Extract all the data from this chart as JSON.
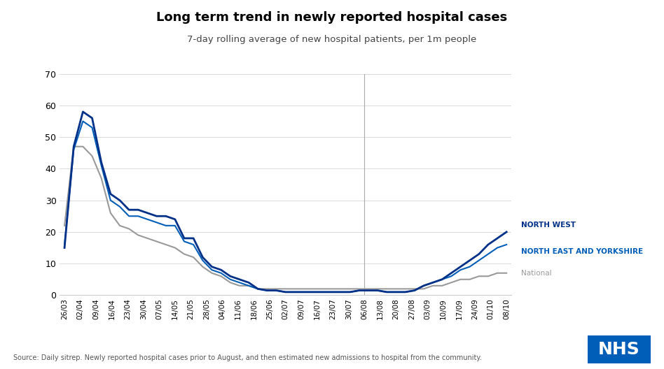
{
  "title": "Long term trend in newly reported hospital cases",
  "subtitle": "7-day rolling average of new hospital patients, per 1m people",
  "source_text": "Source: Daily sitrep. Newly reported hospital cases prior to August, and then estimated new admissions to hospital from the community.",
  "ylim": [
    0,
    70
  ],
  "yticks": [
    0,
    10,
    20,
    30,
    40,
    50,
    60,
    70
  ],
  "colors": {
    "north_west": "#003087",
    "north_east_yorkshire": "#005EB8",
    "national": "#999999",
    "vline": "#aaaaaa",
    "nhs_blue": "#005EB8",
    "nhs_dark": "#003087"
  },
  "labels": {
    "north_west": "NORTH WEST",
    "north_east_yorkshire": "NORTH EAST AND YORKSHIRE",
    "national": "National"
  },
  "x_tick_labels": [
    "26/03",
    "02/04",
    "09/04",
    "16/04",
    "23/04",
    "30/04",
    "07/05",
    "14/05",
    "21/05",
    "28/05",
    "04/06",
    "11/06",
    "18/06",
    "25/06",
    "02/07",
    "09/07",
    "16/07",
    "23/07",
    "30/07",
    "06/08",
    "13/08",
    "20/08",
    "27/08",
    "03/09",
    "10/09",
    "17/09",
    "24/09",
    "01/10",
    "08/10"
  ],
  "vline_x_label": "06/08",
  "nw_values": [
    15,
    47,
    58,
    56,
    42,
    32,
    30,
    27,
    27,
    26,
    25,
    25,
    24,
    18,
    18,
    12,
    9,
    8,
    6,
    5,
    4,
    2,
    1.5,
    1.5,
    1,
    1,
    1,
    1,
    1,
    1,
    1,
    1,
    1.5,
    1.5,
    1.5,
    1,
    1,
    1,
    1.5,
    3,
    4,
    5,
    7,
    9,
    11,
    13,
    16,
    18,
    20
  ],
  "ney_values": [
    16,
    46,
    55,
    53,
    41,
    30,
    28,
    25,
    25,
    24,
    23,
    22,
    22,
    17,
    16,
    11,
    8,
    7,
    5,
    4,
    3,
    2,
    1.5,
    1.5,
    1,
    1,
    1,
    1,
    1,
    1,
    1,
    1,
    1.5,
    1.5,
    1.5,
    1,
    1,
    1,
    1.5,
    3,
    4,
    5,
    6,
    8,
    9,
    11,
    13,
    15,
    16
  ],
  "nat_values": [
    22,
    47,
    47,
    44,
    37,
    26,
    22,
    21,
    19,
    18,
    17,
    16,
    15,
    13,
    12,
    9,
    7,
    6,
    4,
    3,
    3,
    2,
    2,
    2,
    2,
    2,
    2,
    2,
    2,
    2,
    2,
    2,
    2,
    2,
    2,
    2,
    2,
    2,
    2,
    2,
    3,
    3,
    4,
    5,
    5,
    6,
    6,
    7,
    7
  ],
  "n_data": 49,
  "vline_idx": 39
}
